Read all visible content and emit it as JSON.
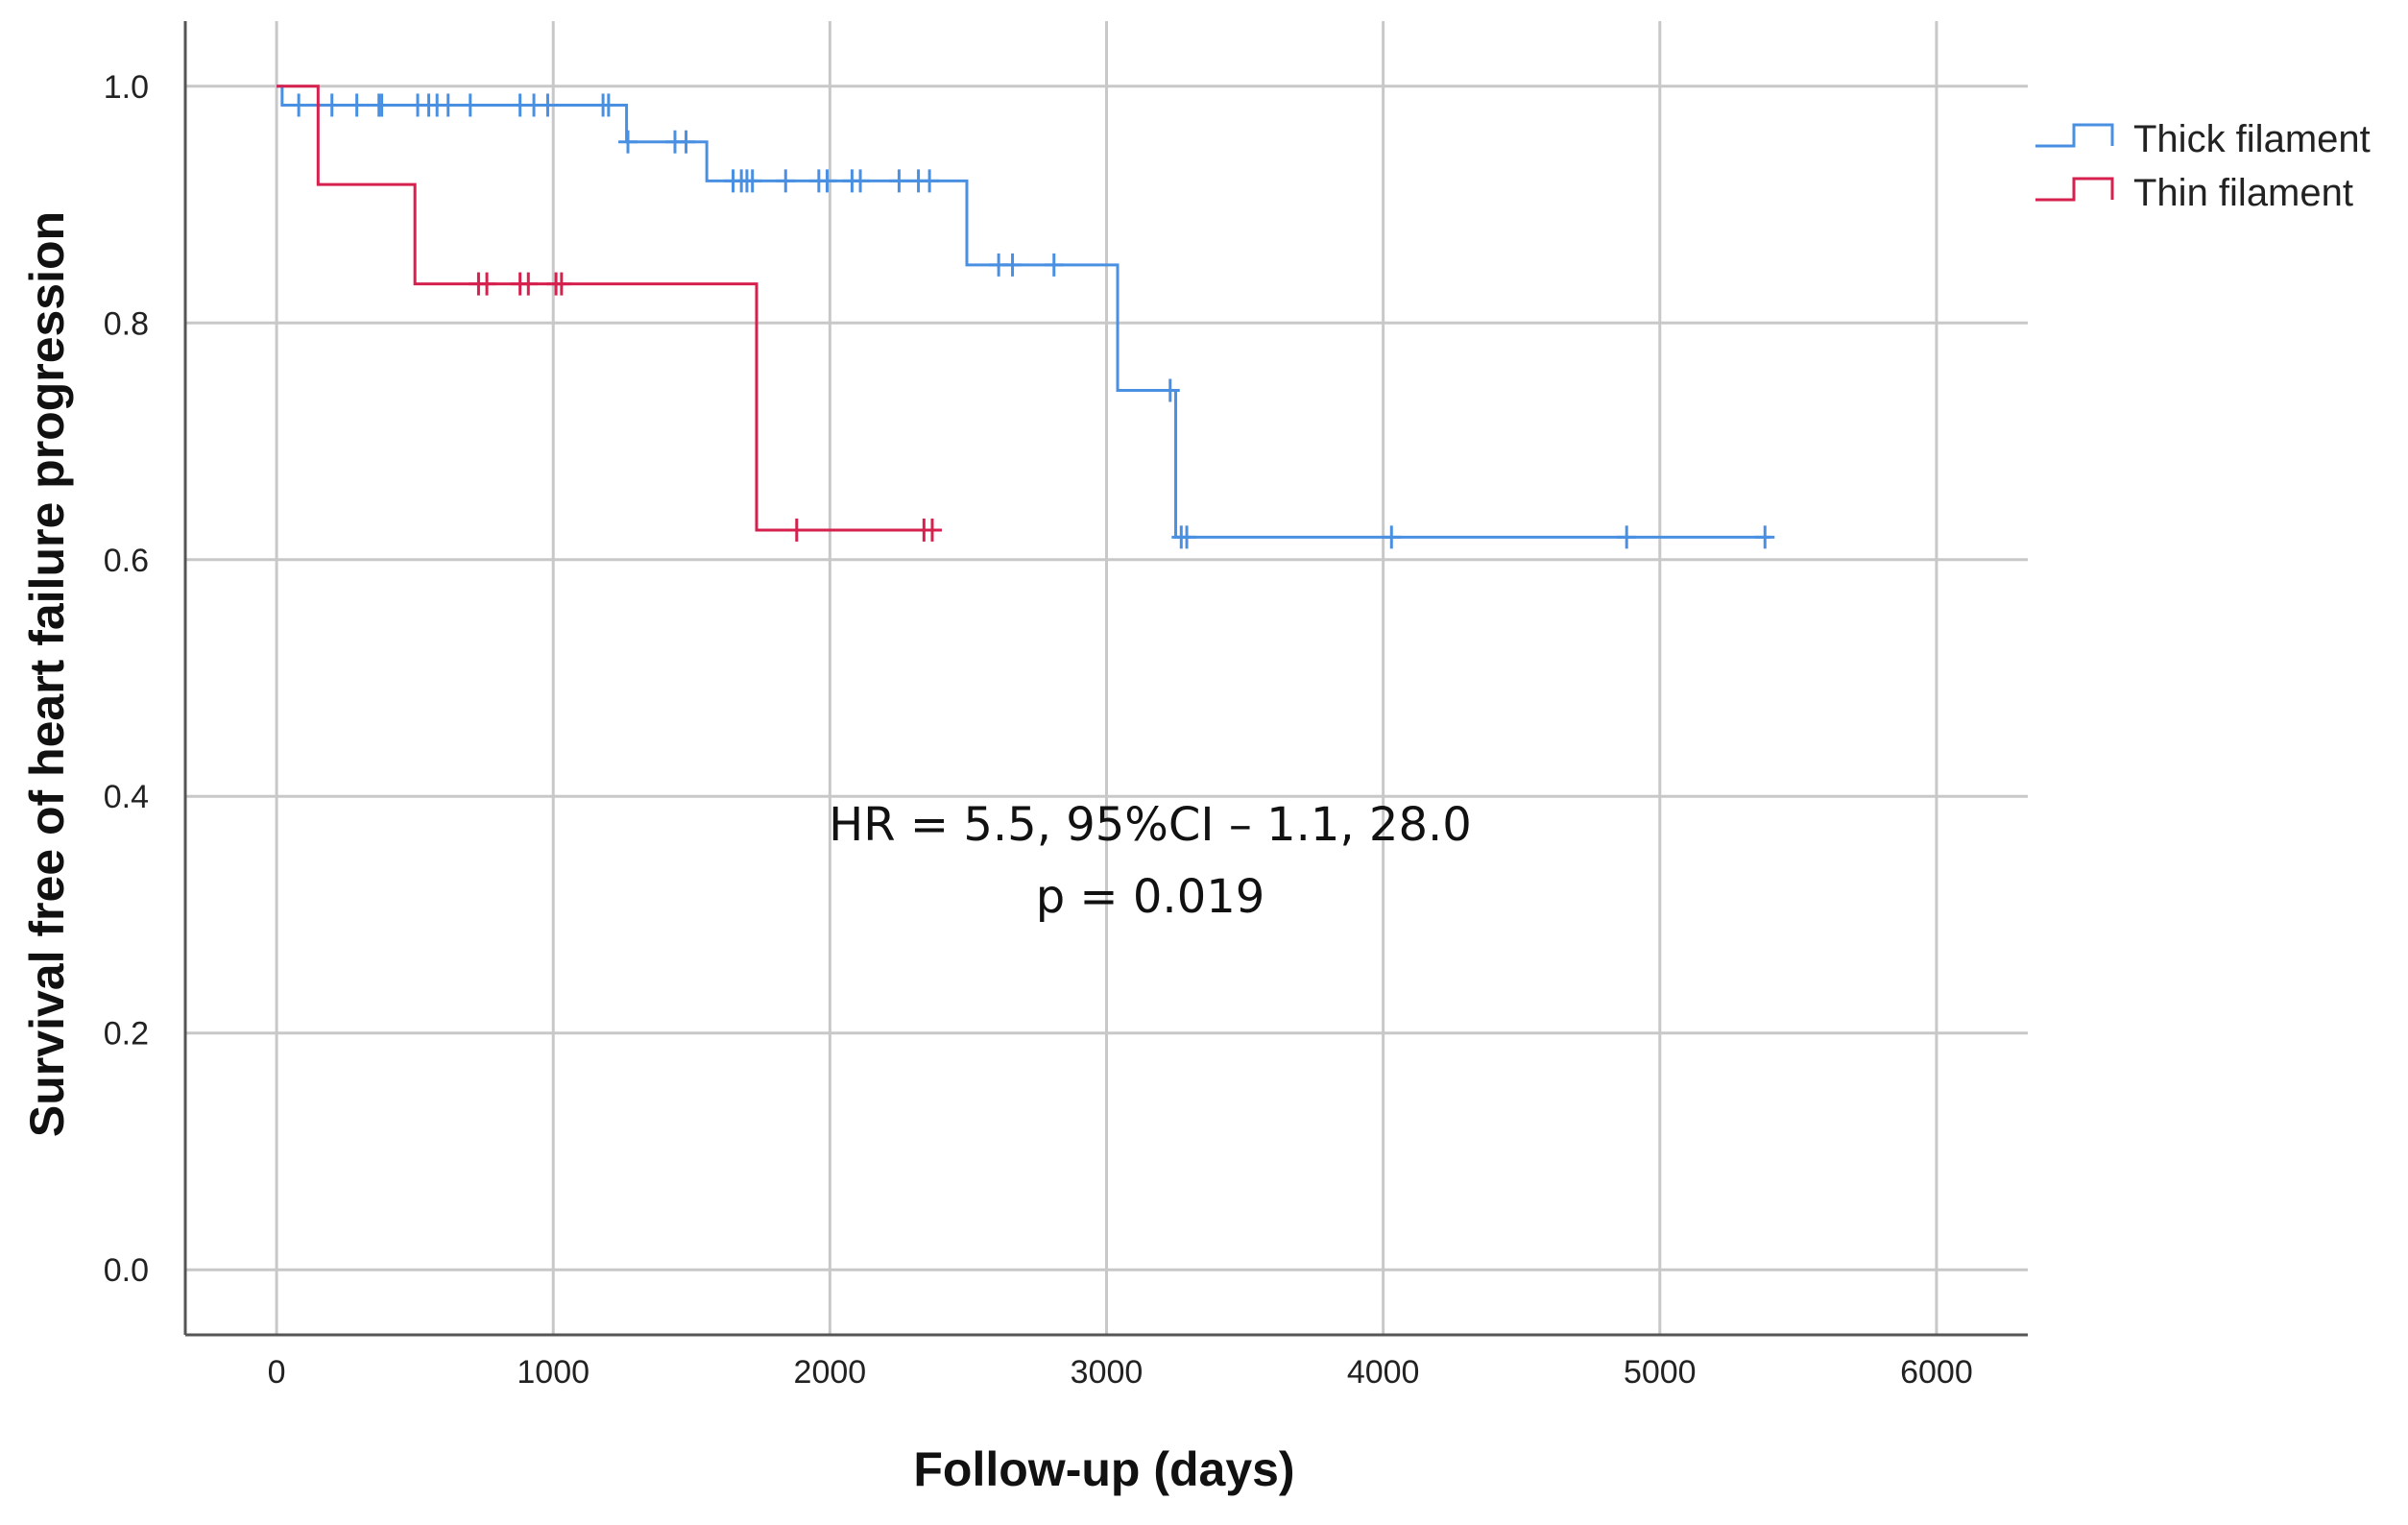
{
  "chart_data": {
    "type": "line",
    "step": true,
    "title": "",
    "xlabel": "Follow-up (days)",
    "ylabel": "Survival free of heart failure progression",
    "xlim": [
      -330,
      6330
    ],
    "ylim": [
      -0.055,
      1.055
    ],
    "x_ticks": [
      0,
      1000,
      2000,
      3000,
      4000,
      5000,
      6000
    ],
    "x_tick_labels": [
      "0",
      "1000",
      "2000",
      "3000",
      "4000",
      "5000",
      "6000"
    ],
    "y_ticks": [
      0.0,
      0.2,
      0.4,
      0.6,
      0.8,
      1.0
    ],
    "y_tick_labels": [
      "0.0",
      "0.2",
      "0.4",
      "0.6",
      "0.8",
      "1.0"
    ],
    "grid": true,
    "legend_position": "top-right",
    "annotations": [
      "HR = 5.5, 95%CI – 1.1, 28.0",
      "p = 0.019"
    ],
    "series": [
      {
        "name": "Thick filament",
        "color": "#4a90e2",
        "steps": [
          [
            0,
            1.0
          ],
          [
            20,
            0.984
          ],
          [
            1265,
            0.953
          ],
          [
            1555,
            0.92
          ],
          [
            2495,
            0.849
          ],
          [
            3040,
            0.743
          ],
          [
            3250,
            0.619
          ],
          [
            5400,
            0.619
          ]
        ],
        "censored": [
          80,
          200,
          290,
          370,
          380,
          510,
          550,
          580,
          620,
          700,
          880,
          930,
          980,
          1180,
          1200,
          1270,
          1440,
          1480,
          1650,
          1680,
          1700,
          1720,
          1840,
          1960,
          1990,
          2080,
          2110,
          2250,
          2320,
          2360,
          2610,
          2660,
          2810,
          3230,
          3270,
          3290,
          4030,
          4880,
          5380
        ]
      },
      {
        "name": "Thin filament",
        "color": "#d6204e",
        "steps": [
          [
            0,
            1.0
          ],
          [
            150,
            0.917
          ],
          [
            500,
            0.833
          ],
          [
            1735,
            0.625
          ],
          [
            2380,
            0.625
          ]
        ],
        "censored": [
          730,
          760,
          880,
          910,
          1010,
          1030,
          1880,
          2340,
          2370
        ]
      }
    ]
  }
}
